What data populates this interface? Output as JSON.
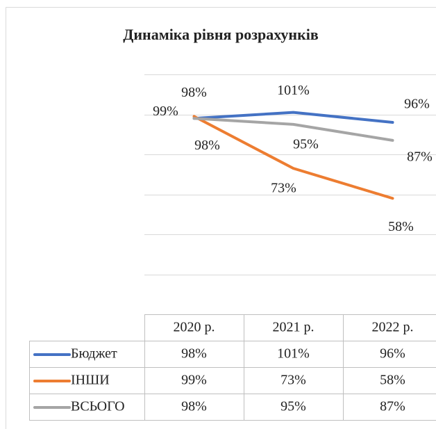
{
  "chart_data": {
    "type": "line",
    "title": "Динаміка рівня розрахунків",
    "categories": [
      "2020 р.",
      "2021 р.",
      "2022 р."
    ],
    "series": [
      {
        "name": "Бюджет",
        "color": "#4472c4",
        "values": [
          98,
          101,
          96
        ],
        "value_labels": [
          "98%",
          "101%",
          "96%"
        ]
      },
      {
        "name": "ІНШИ",
        "color": "#ed7d31",
        "values": [
          99,
          73,
          58
        ],
        "value_labels": [
          "99%",
          "73%",
          "58%"
        ]
      },
      {
        "name": "ВСЬОГО",
        "color": "#a5a5a5",
        "values": [
          98,
          95,
          87
        ],
        "value_labels": [
          "98%",
          "95%",
          "87%"
        ]
      }
    ],
    "ylim": [
      0,
      120
    ],
    "yticks": [
      0,
      20,
      40,
      60,
      80,
      100,
      120
    ],
    "grid": true,
    "data_table": true
  }
}
